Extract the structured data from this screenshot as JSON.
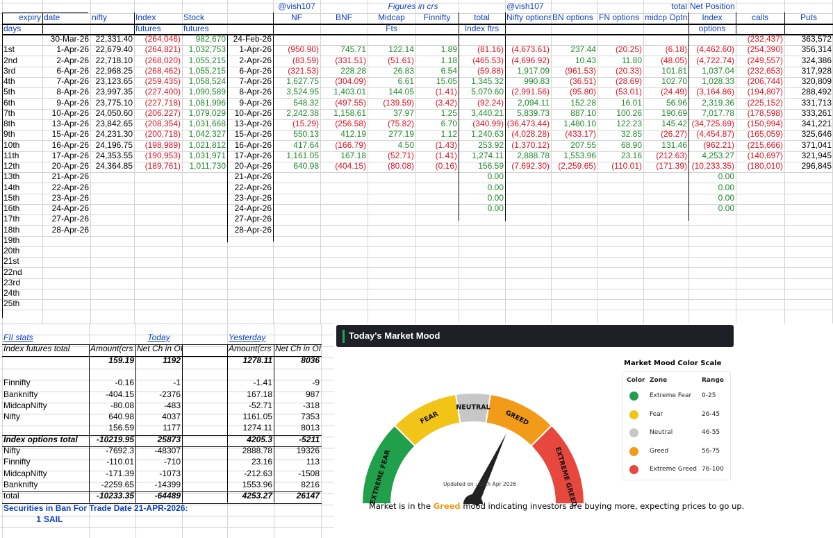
{
  "hdr1": {
    "handle_nf": "@vish107",
    "figures": "Figures in crs",
    "handle_opt": "@vish107",
    "total": "total",
    "net_position": "Net Position"
  },
  "hdr2": {
    "expiry": "expiry",
    "date": "date",
    "nifty": "nifty",
    "index": "Index",
    "stock": "Stock",
    "nf": "NF",
    "bnf": "BNF",
    "midcap": "Midcap",
    "finnifty": "Finnifty",
    "total": "total",
    "nifty_opts": "Nifty options",
    "bn_opts": "BN options",
    "fn_opts": "FN options",
    "midcp_opts": "midcp Optn:",
    "calls": "calls",
    "puts": "Puts"
  },
  "hdr3": {
    "days": "days",
    "futures1": "futures",
    "futures2": "futures",
    "fts": "Fts",
    "index_ftrs": "Index ftrs",
    "options": "options"
  },
  "base_row": {
    "date": "30-Mar-26",
    "nifty": "22,331.40",
    "index_fut": "(264,046)",
    "stock_fut": "982,670",
    "date2": "24-Feb-26",
    "calls": "(232,437)",
    "puts": "363,572"
  },
  "rows": [
    {
      "day": "1st",
      "date": "1-Apr-26",
      "nifty": "22,679.40",
      "idx": "(264,821)",
      "stk": "1,032,753",
      "date2": "1-Apr-26",
      "nf": "(950.90)",
      "bnf": "745.71",
      "mid": "122.14",
      "fin": "1.89",
      "tot": "(81.16)",
      "nopt": "(4,673.61)",
      "bnopt": "237.44",
      "fnopt": "(20.25)",
      "mdopt": "(6.18)",
      "idxopt": "(4,462.60)",
      "calls": "(254,390)",
      "puts": "356,314"
    },
    {
      "day": "2nd",
      "date": "2-Apr-26",
      "nifty": "22,718.10",
      "idx": "(268,020)",
      "stk": "1,055,215",
      "date2": "2-Apr-26",
      "nf": "(83.59)",
      "bnf": "(331.51)",
      "mid": "(51.61)",
      "fin": "1.18",
      "tot": "(465.53)",
      "nopt": "(4,696.92)",
      "bnopt": "10.43",
      "fnopt": "11.80",
      "mdopt": "(48.05)",
      "idxopt": "(4,722.74)",
      "calls": "(249,557)",
      "puts": "324,386"
    },
    {
      "day": "3rd",
      "date": "6-Apr-26",
      "nifty": "22,968.25",
      "idx": "(268,462)",
      "stk": "1,055,215",
      "date2": "6-Apr-26",
      "nf": "(321.53)",
      "bnf": "228.28",
      "mid": "26.83",
      "fin": "6.54",
      "tot": "(59.88)",
      "nopt": "1,917.09",
      "bnopt": "(961.53)",
      "fnopt": "(20.33)",
      "mdopt": "101.81",
      "idxopt": "1,037.04",
      "calls": "(232,653)",
      "puts": "317,928"
    },
    {
      "day": "4th",
      "date": "7-Apr-26",
      "nifty": "23,123.65",
      "idx": "(259,435)",
      "stk": "1,058,524",
      "date2": "7-Apr-26",
      "nf": "1,627.75",
      "bnf": "(304.09)",
      "mid": "6.61",
      "fin": "15.05",
      "tot": "1,345.32",
      "nopt": "990.83",
      "bnopt": "(36.51)",
      "fnopt": "(28.69)",
      "mdopt": "102.70",
      "idxopt": "1,028.33",
      "calls": "(206,744)",
      "puts": "320,809"
    },
    {
      "day": "5th",
      "date": "8-Apr-26",
      "nifty": "23,997.35",
      "idx": "(227,400)",
      "stk": "1,090,589",
      "date2": "8-Apr-26",
      "nf": "3,524.95",
      "bnf": "1,403.01",
      "mid": "144.05",
      "fin": "(1.41)",
      "tot": "5,070.60",
      "nopt": "(2,991.56)",
      "bnopt": "(95.80)",
      "fnopt": "(53.01)",
      "mdopt": "(24.49)",
      "idxopt": "(3,164.86)",
      "calls": "(194,807)",
      "puts": "288,492"
    },
    {
      "day": "6th",
      "date": "9-Apr-26",
      "nifty": "23,775.10",
      "idx": "(227,718)",
      "stk": "1,081,996",
      "date2": "9-Apr-26",
      "nf": "548.32",
      "bnf": "(497.55)",
      "mid": "(139.59)",
      "fin": "(3.42)",
      "tot": "(92.24)",
      "nopt": "2,094.11",
      "bnopt": "152.28",
      "fnopt": "16.01",
      "mdopt": "56.96",
      "idxopt": "2,319.36",
      "calls": "(225,152)",
      "puts": "331,713"
    },
    {
      "day": "7th",
      "date": "10-Apr-26",
      "nifty": "24,050.60",
      "idx": "(206,227)",
      "stk": "1,079,029",
      "date2": "10-Apr-26",
      "nf": "2,242.38",
      "bnf": "1,158.61",
      "mid": "37.97",
      "fin": "1.25",
      "tot": "3,440.21",
      "nopt": "5,839.73",
      "bnopt": "887.10",
      "fnopt": "100.26",
      "mdopt": "190.69",
      "idxopt": "7,017.78",
      "calls": "(178,598)",
      "puts": "333,261"
    },
    {
      "day": "8th",
      "date": "13-Apr-26",
      "nifty": "23,842.65",
      "idx": "(208,354)",
      "stk": "1,031,668",
      "date2": "13-Apr-26",
      "nf": "(15.29)",
      "bnf": "(256.58)",
      "mid": "(75.82)",
      "fin": "6.70",
      "tot": "(340.99)",
      "nopt": "(36,473.44)",
      "bnopt": "1,480.10",
      "fnopt": "122.23",
      "mdopt": "145.42",
      "idxopt": "(34,725.69)",
      "calls": "(150,994)",
      "puts": "341,221"
    },
    {
      "day": "9th",
      "date": "15-Apr-26",
      "nifty": "24,231.30",
      "idx": "(200,718)",
      "stk": "1,042,327",
      "date2": "15-Apr-26",
      "nf": "550.13",
      "bnf": "412.19",
      "mid": "277.19",
      "fin": "1.12",
      "tot": "1,240.63",
      "nopt": "(4,028.28)",
      "bnopt": "(433.17)",
      "fnopt": "32.85",
      "mdopt": "(26.27)",
      "idxopt": "(4,454.87)",
      "calls": "(165,059)",
      "puts": "325,646"
    },
    {
      "day": "10th",
      "date": "16-Apr-26",
      "nifty": "24,196.75",
      "idx": "(198,989)",
      "stk": "1,021,812",
      "date2": "16-Apr-26",
      "nf": "417.64",
      "bnf": "(166.79)",
      "mid": "4.50",
      "fin": "(1.43)",
      "tot": "253.92",
      "nopt": "(1,370.12)",
      "bnopt": "207.55",
      "fnopt": "68.90",
      "mdopt": "131.46",
      "idxopt": "(962.21)",
      "calls": "(215,666)",
      "puts": "371,041"
    },
    {
      "day": "11th",
      "date": "17-Apr-26",
      "nifty": "24,353.55",
      "idx": "(190,953)",
      "stk": "1,031,971",
      "date2": "17-Apr-26",
      "nf": "1,161.05",
      "bnf": "167.18",
      "mid": "(52.71)",
      "fin": "(1.41)",
      "tot": "1,274.11",
      "nopt": "2,888.78",
      "bnopt": "1,553.96",
      "fnopt": "23.16",
      "mdopt": "(212.63)",
      "idxopt": "4,253.27",
      "calls": "(140,697)",
      "puts": "321,945"
    },
    {
      "day": "12th",
      "date": "20-Apr-26",
      "nifty": "24,364.85",
      "idx": "(189,761)",
      "stk": "1,011,730",
      "date2": "20-Apr-26",
      "nf": "640.98",
      "bnf": "(404.15)",
      "mid": "(80.08)",
      "fin": "(0.16)",
      "tot": "156.59",
      "nopt": "(7,692.30)",
      "bnopt": "(2,259.65)",
      "fnopt": "(110.01)",
      "mdopt": "(171.39)",
      "idxopt": "(10,233.35)",
      "calls": "(180,010)",
      "puts": "296,845"
    },
    {
      "day": "13th",
      "date": "21-Apr-26",
      "date2": "21-Apr-26",
      "tot": "0.00",
      "idxopt": "0.00"
    },
    {
      "day": "14th",
      "date": "22-Apr-26",
      "date2": "22-Apr-26",
      "tot": "0.00",
      "idxopt": "0.00"
    },
    {
      "day": "15th",
      "date": "23-Apr-26",
      "date2": "23-Apr-26",
      "tot": "0.00",
      "idxopt": "0.00"
    },
    {
      "day": "16th",
      "date": "24-Apr-26",
      "date2": "24-Apr-26",
      "tot": "0.00",
      "idxopt": "0.00"
    },
    {
      "day": "17th",
      "date": "27-Apr-26",
      "date2": "27-Apr-26"
    },
    {
      "day": "18th",
      "date": "28-Apr-26",
      "date2": "28-Apr-26"
    },
    {
      "day": "19th"
    },
    {
      "day": "20th"
    },
    {
      "day": "21st"
    },
    {
      "day": "22nd"
    },
    {
      "day": "23rd"
    },
    {
      "day": "24th"
    },
    {
      "day": "25th"
    }
  ],
  "fii": {
    "title": "FII stats",
    "today": "Today",
    "yesterday": "Yesterday",
    "amount_hdr": "Amount(crs",
    "net_hdr": "Net Ch in OI",
    "futures_total_label": "Index futures total",
    "fut_sum": {
      "t_amt": "159.19",
      "t_net": "1192",
      "y_amt": "1278.11",
      "y_net": "8036"
    },
    "fut_rows": [
      {
        "label": "Finnifty",
        "t_amt": "-0.16",
        "t_net": "-1",
        "y_amt": "-1.41",
        "y_net": "-9"
      },
      {
        "label": "Banknifty",
        "t_amt": "-404.15",
        "t_net": "-2376",
        "y_amt": "167.18",
        "y_net": "987"
      },
      {
        "label": "MidcapNifty",
        "t_amt": "-80.08",
        "t_net": "-483",
        "y_amt": "-52.71",
        "y_net": "-318"
      },
      {
        "label": "Nifty",
        "t_amt": "640.98",
        "t_net": "4037",
        "y_amt": "1161.05",
        "y_net": "7353"
      }
    ],
    "fut_total": {
      "t_amt": "156.59",
      "t_net": "1177",
      "y_amt": "1274.11",
      "y_net": "8013"
    },
    "opt_total": {
      "label": "Index options total",
      "t_amt": "-10219.95",
      "t_net": "25873",
      "y_amt": "4205.3",
      "y_net": "-5211"
    },
    "opt_rows": [
      {
        "label": "Nifty",
        "t_amt": "-7692.3",
        "t_net": "-48307",
        "y_amt": "2888.78",
        "y_net": "19326"
      },
      {
        "label": "Finnifty",
        "t_amt": "-110.01",
        "t_net": "-710",
        "y_amt": "23.16",
        "y_net": "113"
      },
      {
        "label": "MidcapNifty",
        "t_amt": "-171.39",
        "t_net": "-1073",
        "y_amt": "-212.63",
        "y_net": "-1508"
      },
      {
        "label": "Banknifty",
        "t_amt": "-2259.65",
        "t_net": "-14399",
        "y_amt": "1553.96",
        "y_net": "8216"
      }
    ],
    "grand_total": {
      "label": "total",
      "t_amt": "-10233.35",
      "t_net": "-64489",
      "y_amt": "4253.27",
      "y_net": "26147"
    },
    "ban_text": "Securities in Ban For Trade Date 21-APR-2026:",
    "ban_index": "1",
    "ban_security": "SAIL"
  },
  "mood": {
    "title": "Today's Market Mood",
    "zones": {
      "extreme_fear": "EXTREME FEAR",
      "fear": "FEAR",
      "neutral": "NEUTRAL",
      "greed": "GREED",
      "extreme_greed": "EXTREME GREED"
    },
    "needle_value": 64,
    "updated": "Updated on : 20th Apr 2026",
    "scale_title": "Market Mood Color Scale",
    "scale_headers": {
      "color": "Color",
      "zone": "Zone",
      "range": "Range"
    },
    "scale": [
      {
        "zone": "Extreme Fear",
        "range": "0-25",
        "color": "#21a04c"
      },
      {
        "zone": "Fear",
        "range": "26-45",
        "color": "#f2c418"
      },
      {
        "zone": "Neutral",
        "range": "46-55",
        "color": "#c7c7c7"
      },
      {
        "zone": "Greed",
        "range": "56-75",
        "color": "#f29b18"
      },
      {
        "zone": "Extreme Greed",
        "range": "76-100",
        "color": "#e8473d"
      }
    ],
    "sentence_pre": "Market is in the",
    "sentence_mood": "Greed",
    "sentence_post": "mood indicating investors are buying more, expecting prices to go up."
  }
}
